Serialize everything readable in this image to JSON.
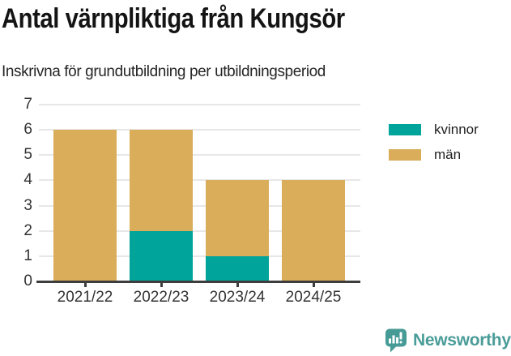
{
  "header": {
    "title": "Antal värnpliktiga från Kungsör",
    "subtitle": "Inskrivna för grundutbildning per utbildningsperiod"
  },
  "chart_data": {
    "type": "bar",
    "stacked": true,
    "title": "Antal värnpliktiga från Kungsör",
    "subtitle": "Inskrivna för grundutbildning per utbildningsperiod",
    "categories": [
      "2021/22",
      "2022/23",
      "2023/24",
      "2024/25"
    ],
    "series": [
      {
        "name": "kvinnor",
        "color": "#00a49a",
        "values": [
          0,
          2,
          1,
          0
        ]
      },
      {
        "name": "män",
        "color": "#d9ad59",
        "values": [
          6,
          4,
          3,
          4
        ]
      }
    ],
    "totals": [
      6,
      6,
      4,
      4
    ],
    "xlabel": "",
    "ylabel": "",
    "ylim": [
      0,
      7
    ],
    "yticks": [
      0,
      1,
      2,
      3,
      4,
      5,
      6,
      7
    ],
    "grid": true,
    "legend_position": "right-outside-top"
  },
  "footer": {
    "brand": "Newsworthy",
    "brand_color": "#4a9c98",
    "logo_icon": "speech-bubble-bar-chart-exclamation"
  },
  "colors": {
    "kvinnor": "#00a49a",
    "man": "#d9ad59",
    "axis": "#3d3d3d",
    "grid": "#e7e7e7",
    "text": "#333333"
  }
}
